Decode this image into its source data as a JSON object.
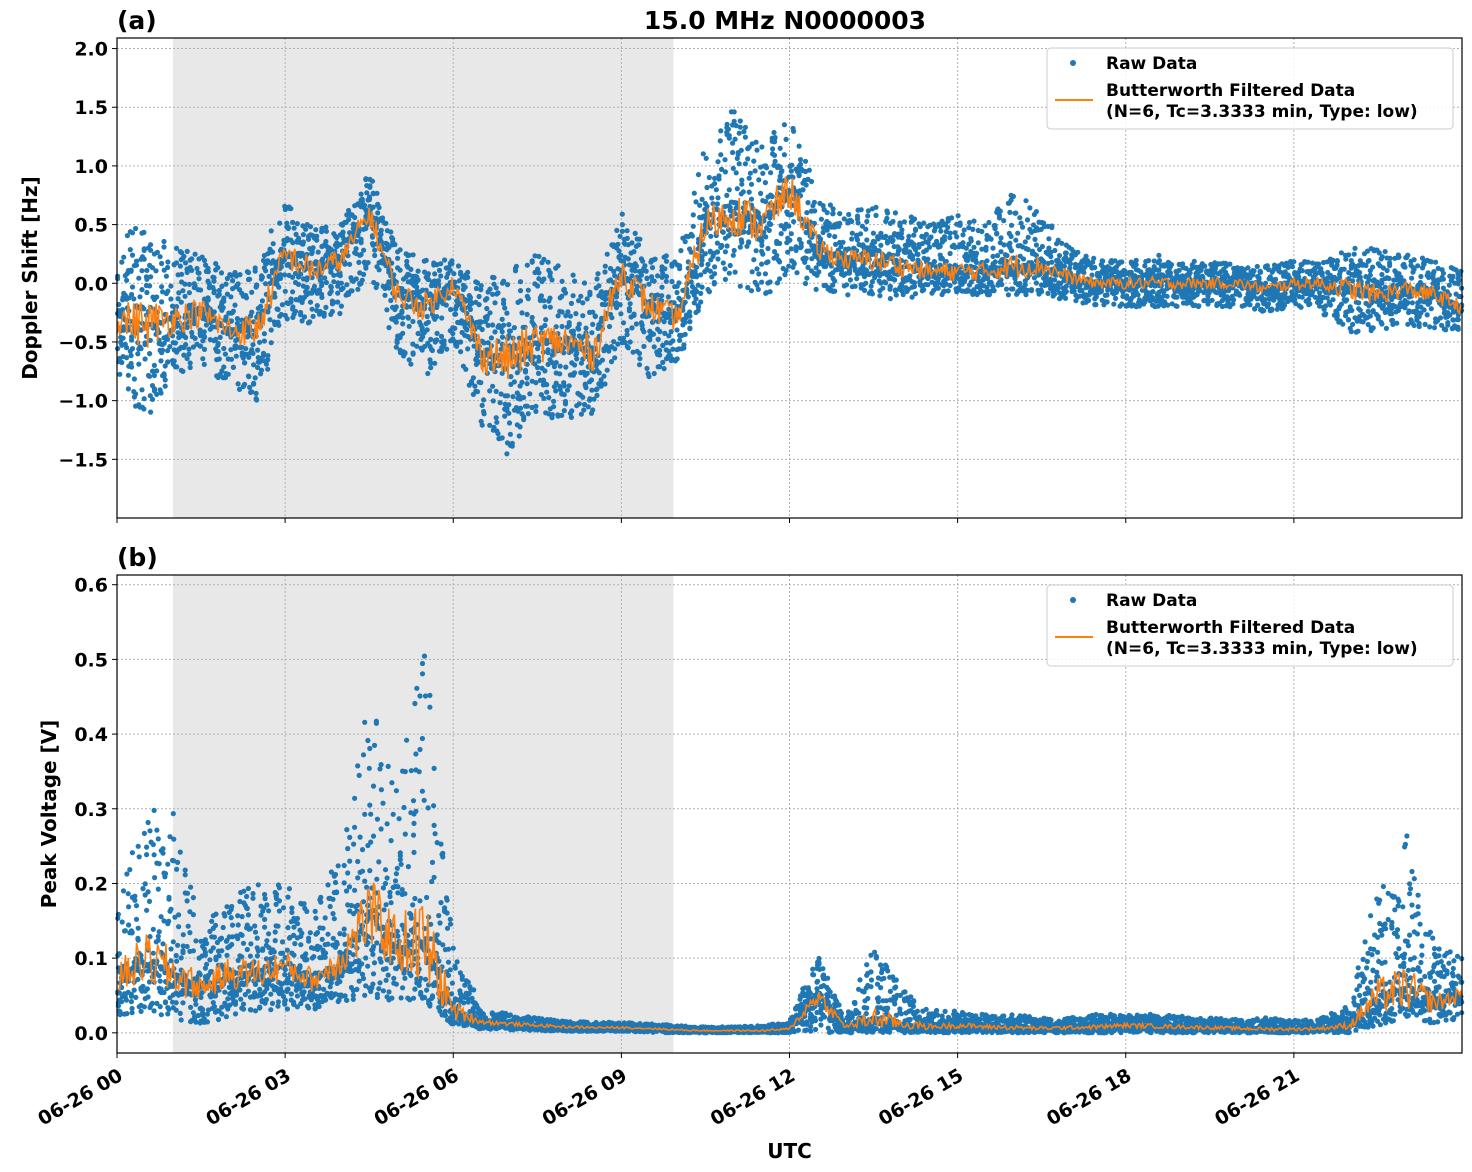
{
  "title": "15.0 MHz N0000003",
  "colors": {
    "raw": "#1f77b4",
    "filtered": "#ff7f0e",
    "shade": "#e8e8e8"
  },
  "chart_data": [
    {
      "type": "scatter",
      "panel_label": "(a)",
      "ylabel": "Doppler Shift [Hz]",
      "xlabel": "",
      "x_unit": "hours after 06-26 00 UTC",
      "xlim": [
        0,
        24
      ],
      "ylim": [
        -2.0,
        2.09
      ],
      "grid": true,
      "yticks": [
        -1.5,
        -1.0,
        -0.5,
        0.0,
        0.5,
        1.0,
        1.5,
        2.0
      ],
      "ytick_labels": [
        "−1.5",
        "−1.0",
        "−0.5",
        "0.0",
        "0.5",
        "1.0",
        "1.5",
        "2.0"
      ],
      "shaded_interval": [
        1.0,
        9.93
      ],
      "legend": {
        "placement": "top-right",
        "entries": [
          "Raw Data",
          "Butterworth Filtered Data",
          "(N=6, Tc=3.3333 min, Type: low)"
        ]
      },
      "x": [
        0,
        0.5,
        1,
        1.5,
        2,
        2.5,
        3,
        3.5,
        4,
        4.5,
        5,
        5.5,
        6,
        6.5,
        7,
        7.5,
        8,
        8.5,
        9,
        9.5,
        10,
        10.5,
        11,
        11.5,
        12,
        12.5,
        13,
        13.5,
        14,
        14.5,
        15,
        15.5,
        16,
        16.5,
        17,
        17.5,
        18,
        18.5,
        19,
        19.5,
        20,
        20.5,
        21,
        21.5,
        22,
        22.5,
        23,
        23.5,
        24
      ],
      "series": [
        {
          "name": "Butterworth Filtered Data",
          "kind": "line",
          "values": [
            -0.3,
            -0.35,
            -0.3,
            -0.25,
            -0.4,
            -0.4,
            0.25,
            0.1,
            0.2,
            0.6,
            -0.1,
            -0.2,
            0.0,
            -0.6,
            -0.65,
            -0.5,
            -0.5,
            -0.6,
            0.1,
            -0.2,
            -0.3,
            0.5,
            0.6,
            0.5,
            0.8,
            0.3,
            0.2,
            0.2,
            0.15,
            0.1,
            0.1,
            0.1,
            0.15,
            0.15,
            0.05,
            0.0,
            0.0,
            0.0,
            0.0,
            0.0,
            0.0,
            -0.05,
            0.0,
            0.0,
            -0.05,
            -0.1,
            -0.05,
            -0.1,
            -0.2
          ]
        },
        {
          "name": "Raw Data",
          "kind": "scatter-band",
          "lower": [
            -0.8,
            -1.2,
            -0.8,
            -0.7,
            -0.9,
            -1.0,
            -0.3,
            -0.4,
            -0.3,
            0.1,
            -0.6,
            -0.8,
            -0.5,
            -1.2,
            -1.5,
            -1.1,
            -1.2,
            -1.2,
            -0.5,
            -0.8,
            -0.7,
            -0.1,
            0.0,
            -0.2,
            0.1,
            -0.1,
            -0.1,
            -0.1,
            -0.15,
            -0.1,
            -0.1,
            -0.1,
            -0.1,
            -0.1,
            -0.15,
            -0.2,
            -0.2,
            -0.2,
            -0.2,
            -0.2,
            -0.2,
            -0.25,
            -0.2,
            -0.25,
            -0.5,
            -0.4,
            -0.35,
            -0.4,
            -0.4
          ],
          "upper": [
            0.3,
            0.6,
            0.3,
            0.3,
            0.1,
            0.2,
            0.7,
            0.5,
            0.5,
            0.95,
            0.3,
            0.2,
            0.2,
            0.0,
            0.2,
            0.3,
            0.1,
            0.0,
            0.6,
            0.3,
            0.2,
            1.2,
            1.5,
            1.2,
            1.4,
            0.8,
            0.6,
            0.7,
            0.6,
            0.5,
            0.6,
            0.5,
            0.8,
            0.6,
            0.3,
            0.2,
            0.2,
            0.25,
            0.2,
            0.2,
            0.15,
            0.15,
            0.2,
            0.2,
            0.3,
            0.3,
            0.25,
            0.2,
            0.1
          ]
        }
      ]
    },
    {
      "type": "scatter",
      "panel_label": "(b)",
      "ylabel": "Peak Voltage [V]",
      "xlabel": "UTC",
      "x_unit": "hours after 06-26 00 UTC",
      "xlim": [
        0,
        24
      ],
      "ylim": [
        -0.027,
        0.613
      ],
      "grid": true,
      "yticks": [
        0.0,
        0.1,
        0.2,
        0.3,
        0.4,
        0.5,
        0.6
      ],
      "ytick_labels": [
        "0.0",
        "0.1",
        "0.2",
        "0.3",
        "0.4",
        "0.5",
        "0.6"
      ],
      "xticks": [
        0,
        3,
        6,
        9,
        12,
        15,
        18,
        21
      ],
      "xtick_labels": [
        "06-26 00",
        "06-26 03",
        "06-26 06",
        "06-26 09",
        "06-26 12",
        "06-26 15",
        "06-26 18",
        "06-26 21"
      ],
      "shaded_interval": [
        1.0,
        9.93
      ],
      "legend": {
        "placement": "top-right",
        "entries": [
          "Raw Data",
          "Butterworth Filtered Data",
          "(N=6, Tc=3.3333 min, Type: low)"
        ]
      },
      "x": [
        0,
        0.5,
        1,
        1.5,
        2,
        2.5,
        3,
        3.5,
        4,
        4.5,
        5,
        5.5,
        6,
        6.5,
        7,
        7.5,
        8,
        8.5,
        9,
        9.5,
        10,
        10.5,
        11,
        11.5,
        12,
        12.5,
        13,
        13.5,
        14,
        14.5,
        15,
        15.5,
        16,
        16.5,
        17,
        17.5,
        18,
        18.5,
        19,
        19.5,
        20,
        20.5,
        21,
        21.5,
        22,
        22.5,
        23,
        23.5,
        24
      ],
      "series": [
        {
          "name": "Butterworth Filtered Data",
          "kind": "line",
          "values": [
            0.07,
            0.1,
            0.08,
            0.06,
            0.08,
            0.08,
            0.09,
            0.07,
            0.1,
            0.16,
            0.12,
            0.12,
            0.03,
            0.015,
            0.012,
            0.01,
            0.008,
            0.007,
            0.007,
            0.006,
            0.004,
            0.003,
            0.003,
            0.003,
            0.005,
            0.05,
            0.008,
            0.02,
            0.012,
            0.008,
            0.01,
            0.008,
            0.007,
            0.006,
            0.007,
            0.008,
            0.01,
            0.009,
            0.008,
            0.007,
            0.006,
            0.005,
            0.005,
            0.006,
            0.01,
            0.05,
            0.06,
            0.04,
            0.05
          ]
        },
        {
          "name": "Raw Data",
          "kind": "scatter-band",
          "lower": [
            0.02,
            0.03,
            0.02,
            0.01,
            0.02,
            0.03,
            0.03,
            0.03,
            0.04,
            0.05,
            0.04,
            0.04,
            0.01,
            0.005,
            0.004,
            0.003,
            0.002,
            0.002,
            0.002,
            0.001,
            0.0,
            0.0,
            0.0,
            0.0,
            0.0,
            0.0,
            0.0,
            0.0,
            0.0,
            0.0,
            0.0,
            0.0,
            0.0,
            0.0,
            0.0,
            0.0,
            0.0,
            0.0,
            0.0,
            0.0,
            0.0,
            0.0,
            0.0,
            0.0,
            0.0,
            0.01,
            0.02,
            0.01,
            0.02
          ],
          "upper": [
            0.2,
            0.3,
            0.3,
            0.14,
            0.2,
            0.2,
            0.2,
            0.16,
            0.25,
            0.45,
            0.35,
            0.55,
            0.12,
            0.035,
            0.025,
            0.02,
            0.016,
            0.014,
            0.014,
            0.012,
            0.01,
            0.008,
            0.008,
            0.01,
            0.015,
            0.11,
            0.02,
            0.12,
            0.06,
            0.03,
            0.03,
            0.025,
            0.025,
            0.02,
            0.02,
            0.025,
            0.025,
            0.025,
            0.022,
            0.02,
            0.018,
            0.02,
            0.018,
            0.02,
            0.04,
            0.2,
            0.27,
            0.12,
            0.1
          ]
        }
      ]
    }
  ]
}
